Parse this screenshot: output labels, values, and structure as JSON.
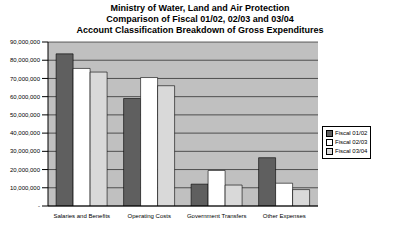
{
  "chart_data": {
    "type": "bar",
    "title": "Ministry of Water, Land and Air Protection\nComparison of Fiscal 01/02, 02/03 and 03/04\nAccount Classification Breakdown of Gross Expenditures",
    "categories": [
      "Salaries and Benefits",
      "Operating Costs",
      "Government Transfers",
      "Other Expenses"
    ],
    "series": [
      {
        "name": "Fiscal 01/02",
        "color": "#5f5f5f",
        "values": [
          83500000,
          59000000,
          12000000,
          26500000
        ]
      },
      {
        "name": "Fiscal 02/03",
        "color": "#ffffff",
        "values": [
          75500000,
          70500000,
          19500000,
          12500000
        ]
      },
      {
        "name": "Fiscal 03/04",
        "color": "#d9d9d9",
        "values": [
          73500000,
          66000000,
          11500000,
          9000000
        ]
      }
    ],
    "ylim": [
      0,
      90000000
    ],
    "yticks": [
      {
        "value": 0,
        "label": "-"
      },
      {
        "value": 10000000,
        "label": "10,000,000"
      },
      {
        "value": 20000000,
        "label": "20,000,000"
      },
      {
        "value": 30000000,
        "label": "30,000,000"
      },
      {
        "value": 40000000,
        "label": "40,000,000"
      },
      {
        "value": 50000000,
        "label": "50,000,000"
      },
      {
        "value": 60000000,
        "label": "60,000,000"
      },
      {
        "value": 70000000,
        "label": "70,000,000"
      },
      {
        "value": 80000000,
        "label": "80,000,000"
      },
      {
        "value": 90000000,
        "label": "90,000,000"
      }
    ],
    "grid": true,
    "legend": "right"
  }
}
